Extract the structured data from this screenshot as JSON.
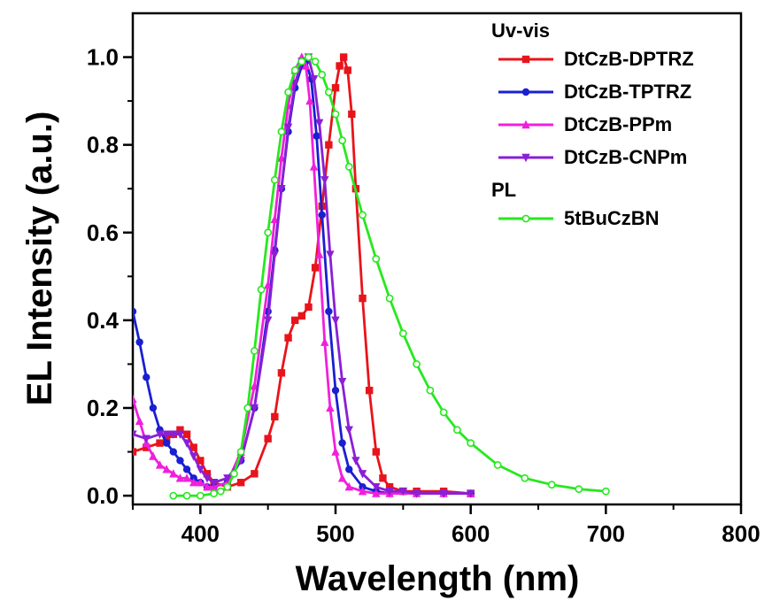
{
  "chart_data": {
    "type": "line",
    "xlabel": "Wavelength (nm)",
    "ylabel": "EL Intensity (a.u.)",
    "xlim": [
      350,
      800
    ],
    "ylim": [
      -0.02,
      1.1
    ],
    "x_ticks": [
      {
        "value": 400,
        "label": "400"
      },
      {
        "value": 500,
        "label": "500"
      },
      {
        "value": 600,
        "label": "600"
      },
      {
        "value": 700,
        "label": "700"
      },
      {
        "value": 800,
        "label": "800"
      }
    ],
    "y_ticks": [
      {
        "value": 0.0,
        "label": "0.0"
      },
      {
        "value": 0.2,
        "label": "0.2"
      },
      {
        "value": 0.4,
        "label": "0.4"
      },
      {
        "value": 0.6,
        "label": "0.6"
      },
      {
        "value": 0.8,
        "label": "0.8"
      },
      {
        "value": 1.0,
        "label": "1.0"
      }
    ],
    "grid": false,
    "legend_position": "top-right",
    "legend_groups": [
      {
        "heading": "Uv-vis",
        "series": [
          0,
          1,
          2,
          3
        ]
      },
      {
        "heading": "PL",
        "series": [
          4
        ]
      }
    ],
    "series": [
      {
        "name": "DtCzB-DPTRZ",
        "color": "#e8141b",
        "marker": "square",
        "x": [
          350,
          360,
          370,
          375,
          380,
          385,
          390,
          395,
          400,
          405,
          410,
          420,
          430,
          440,
          450,
          455,
          460,
          465,
          470,
          475,
          480,
          485,
          490,
          495,
          500,
          503,
          506,
          509,
          512,
          515,
          520,
          525,
          530,
          535,
          540,
          550,
          560,
          580,
          600
        ],
        "y": [
          0.1,
          0.11,
          0.12,
          0.13,
          0.14,
          0.15,
          0.14,
          0.11,
          0.08,
          0.05,
          0.03,
          0.02,
          0.03,
          0.05,
          0.13,
          0.18,
          0.28,
          0.36,
          0.4,
          0.41,
          0.43,
          0.52,
          0.66,
          0.8,
          0.93,
          0.98,
          1.0,
          0.97,
          0.87,
          0.7,
          0.45,
          0.24,
          0.1,
          0.04,
          0.02,
          0.01,
          0.01,
          0.01,
          0.005
        ]
      },
      {
        "name": "DtCzB-TPTRZ",
        "color": "#1a1fd1",
        "marker": "circle",
        "x": [
          350,
          355,
          360,
          365,
          370,
          375,
          380,
          385,
          390,
          395,
          400,
          405,
          410,
          420,
          430,
          440,
          450,
          455,
          460,
          465,
          470,
          475,
          478,
          482,
          486,
          490,
          495,
          500,
          505,
          510,
          520,
          530,
          540,
          560,
          580,
          600
        ],
        "y": [
          0.42,
          0.35,
          0.27,
          0.2,
          0.15,
          0.12,
          0.1,
          0.08,
          0.06,
          0.04,
          0.03,
          0.02,
          0.02,
          0.03,
          0.08,
          0.2,
          0.42,
          0.56,
          0.7,
          0.83,
          0.93,
          0.98,
          0.99,
          0.95,
          0.82,
          0.64,
          0.42,
          0.24,
          0.12,
          0.06,
          0.02,
          0.01,
          0.005,
          0.005,
          0.005,
          0.005
        ]
      },
      {
        "name": "DtCzB-PPm",
        "color": "#f01fdc",
        "marker": "triangle-up",
        "x": [
          350,
          355,
          360,
          365,
          370,
          375,
          380,
          385,
          390,
          395,
          400,
          405,
          410,
          420,
          430,
          440,
          450,
          455,
          460,
          465,
          470,
          475,
          478,
          481,
          484,
          488,
          492,
          496,
          500,
          505,
          510,
          520,
          530,
          540,
          560,
          580,
          600
        ],
        "y": [
          0.22,
          0.17,
          0.12,
          0.09,
          0.07,
          0.06,
          0.05,
          0.04,
          0.04,
          0.03,
          0.03,
          0.02,
          0.02,
          0.03,
          0.1,
          0.25,
          0.48,
          0.63,
          0.77,
          0.89,
          0.97,
          1.0,
          0.98,
          0.9,
          0.75,
          0.55,
          0.35,
          0.2,
          0.1,
          0.04,
          0.02,
          0.01,
          0.005,
          0.005,
          0.005,
          0.005,
          0.005
        ]
      },
      {
        "name": "DtCzB-CNPm",
        "color": "#8a1fd6",
        "marker": "triangle-down",
        "x": [
          350,
          360,
          370,
          375,
          380,
          385,
          390,
          395,
          400,
          405,
          410,
          420,
          430,
          440,
          450,
          455,
          460,
          465,
          470,
          475,
          480,
          484,
          488,
          492,
          496,
          500,
          505,
          510,
          515,
          520,
          530,
          540,
          550,
          560,
          580,
          600
        ],
        "y": [
          0.14,
          0.13,
          0.14,
          0.14,
          0.14,
          0.14,
          0.12,
          0.09,
          0.06,
          0.04,
          0.03,
          0.04,
          0.08,
          0.2,
          0.4,
          0.55,
          0.7,
          0.84,
          0.94,
          0.99,
          1.0,
          0.95,
          0.85,
          0.72,
          0.55,
          0.4,
          0.26,
          0.15,
          0.08,
          0.05,
          0.02,
          0.01,
          0.01,
          0.005,
          0.005,
          0.005
        ]
      },
      {
        "name": "5tBuCzBN",
        "color": "#27e81e",
        "marker": "circle-open",
        "x": [
          380,
          390,
          400,
          410,
          415,
          420,
          425,
          430,
          435,
          440,
          445,
          450,
          455,
          460,
          465,
          470,
          475,
          480,
          485,
          490,
          495,
          500,
          505,
          510,
          520,
          530,
          540,
          550,
          560,
          570,
          580,
          590,
          600,
          620,
          640,
          660,
          680,
          700
        ],
        "y": [
          0.0,
          0.0,
          0.0,
          0.005,
          0.01,
          0.02,
          0.05,
          0.1,
          0.2,
          0.33,
          0.47,
          0.6,
          0.72,
          0.83,
          0.92,
          0.97,
          0.99,
          1.0,
          0.99,
          0.96,
          0.92,
          0.87,
          0.81,
          0.75,
          0.64,
          0.54,
          0.45,
          0.37,
          0.3,
          0.24,
          0.19,
          0.15,
          0.12,
          0.07,
          0.04,
          0.025,
          0.015,
          0.01
        ]
      }
    ]
  }
}
